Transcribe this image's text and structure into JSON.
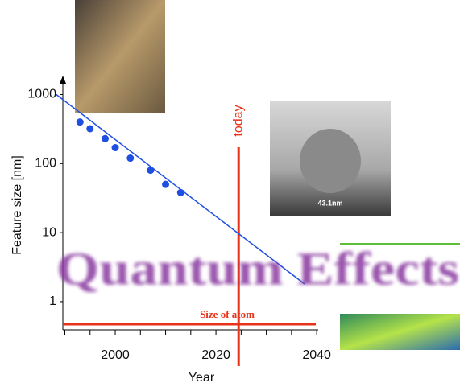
{
  "chart_data": {
    "type": "scatter",
    "x_label": "Year",
    "y_label": "Feature size [nm]",
    "log_y": true,
    "xlim": [
      1989.6,
      2040.3
    ],
    "ylim": [
      0.39,
      1600
    ],
    "xticks": [
      2000,
      2020,
      2040
    ],
    "xminorticks": [
      1990,
      1995,
      2005,
      2010,
      2015,
      2025,
      2030,
      2035
    ],
    "yticks": [
      1,
      10,
      100,
      1000
    ],
    "series": [
      {
        "color": "#1f4fe0",
        "x": [
          1993,
          1995,
          1998,
          2000,
          2003,
          2007,
          2010,
          2013
        ],
        "values": [
          400,
          320,
          230,
          170,
          120,
          80,
          50,
          38
        ]
      }
    ],
    "trend": {
      "color": "#1f4fe0",
      "x": [
        1988.3,
        2037.6
      ],
      "values": [
        1000,
        1.8
      ]
    },
    "today": {
      "label": "today",
      "x": 2024.5,
      "color": "#e8331a"
    },
    "atom": {
      "label": "Size of atom",
      "value": 0.47,
      "color": "#e8331a"
    },
    "banner": "Quantum Effects",
    "image_caption": "43.1nm"
  }
}
